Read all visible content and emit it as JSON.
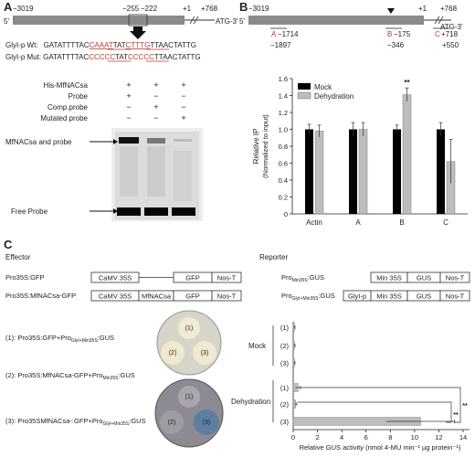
{
  "panelA": {
    "label": "A",
    "pos_left": "−3019",
    "pos_m255": "−255",
    "pos_m222": "−222",
    "pos_p1": "+1",
    "pos_p768": "+768",
    "five": "5'",
    "atg": "ATG-3'",
    "seq_wt_label": "GlyI-p Wt:",
    "seq_wt_a": "GATATTTTAC",
    "seq_wt_b": "CAAAT",
    "seq_wt_c": "TAT",
    "seq_wt_d": "CTTTG",
    "seq_wt_e": "TTAACTATTG",
    "seq_mut_label": "GlyI-p Mut:",
    "seq_mut_a": "GATATTTTAC",
    "seq_mut_b": "CCCCC",
    "seq_mut_c": "TAT",
    "seq_mut_d": "CCCCC",
    "seq_mut_e": "TTAACTATTG",
    "rows": [
      {
        "label": "His-MfNACsa",
        "vals": [
          "+",
          "+",
          "+"
        ]
      },
      {
        "label": "Probe",
        "vals": [
          "+",
          "−",
          "−"
        ]
      },
      {
        "label": "Comp.probe",
        "vals": [
          "−",
          "+",
          "−"
        ]
      },
      {
        "label": "Mutated probe",
        "vals": [
          "−",
          "−",
          "+"
        ]
      }
    ],
    "band_label": "MfNACsa and probe",
    "free_label": "Free Probe"
  },
  "panelB": {
    "label": "B",
    "pos_left": "−3019",
    "pos_p1": "+1",
    "pos_p768": "+768",
    "five": "5'",
    "atg": "ATG-3'",
    "frag_a": "A",
    "frag_a_pos": "−1714",
    "frag_a_pos2": "−1897",
    "frag_b": "B",
    "frag_b_pos": "−175",
    "frag_b_pos2": "−346",
    "frag_c": "C",
    "frag_c_pos": "+718",
    "frag_c_pos2": "+550",
    "sig": "**"
  },
  "panelC": {
    "label": "C",
    "effector_title": "Effector",
    "reporter_title": "Reporter",
    "eff1_name": "Pro35S:GFP",
    "eff2_name": "Pro35S:MfNACsa-GFP",
    "camv": "CaMV 35S",
    "gfp": "GFP",
    "nos": "Nos-T",
    "mfnac": "MfNACsa",
    "rep1_name": "Pro",
    "rep1_sub": "Min35S",
    "rep1_tail": ":GUS",
    "rep2_name": "Pro",
    "rep2_sub": "GlyI+Min35S",
    "rep2_tail": ":GUS",
    "min35s": "Min 35S",
    "gus": "GUS",
    "glyip": "GlyI-p",
    "leg1_a": "(1): Pro35S:GFP+Pro",
    "leg1_sub": "GlyI+Min35S",
    "leg1_b": ":GUS",
    "leg2_a": "(2): Pro35S:MfNACsa-GFP+Pro",
    "leg2_sub": "Min35S",
    "leg2_b": ":GUS",
    "leg3_a": "(3): Pro35SMfNACsa-:GFP+Pro",
    "leg3_sub": "GlyI+Min35S",
    "leg3_b": ":GUS",
    "plate_l1": "(1)",
    "plate_l2": "(2)",
    "plate_l3": "(3)",
    "mock": "Mock",
    "dehydration": "Dehydration",
    "sig": "**"
  },
  "chart_data": [
    {
      "type": "bar",
      "ylabel": "Relative IP\n(Normalized to input)",
      "categories": [
        "Actin",
        "A",
        "B",
        "C"
      ],
      "ylim": [
        0,
        1.6
      ],
      "yticks": [
        "0",
        "0.2",
        "0.4",
        "0.6",
        "0.8",
        "1.0",
        "1.2",
        "1.4",
        "1.6"
      ],
      "legend": "top-left",
      "series": [
        {
          "name": "Mock",
          "color": "#000000",
          "values": [
            1.0,
            1.0,
            1.0,
            1.0
          ],
          "errors": [
            0.06,
            0.08,
            0.05,
            0.08
          ]
        },
        {
          "name": "Dehydration",
          "color": "#bdbdbd",
          "values": [
            0.98,
            1.0,
            1.41,
            0.62
          ],
          "errors": [
            0.07,
            0.08,
            0.08,
            0.26
          ]
        }
      ]
    },
    {
      "type": "bar",
      "orientation": "horizontal",
      "xlabel": "Relative GUS activity (nmol 4-MU min⁻¹ μg protein⁻¹)",
      "xlim": [
        0,
        14
      ],
      "xticks": [
        "0",
        "2",
        "4",
        "6",
        "8",
        "10",
        "12",
        "14"
      ],
      "categories": [
        "(1)",
        "(2)",
        "(3)",
        "(1)",
        "(2)",
        "(3)"
      ],
      "groups": [
        "Mock",
        "Mock",
        "Mock",
        "Dehydration",
        "Dehydration",
        "Dehydration"
      ],
      "values": [
        0.1,
        0.1,
        0.1,
        0.4,
        0.2,
        10.5
      ],
      "errors": [
        0.05,
        0.05,
        0.05,
        0.2,
        0.1,
        2.8
      ]
    }
  ]
}
